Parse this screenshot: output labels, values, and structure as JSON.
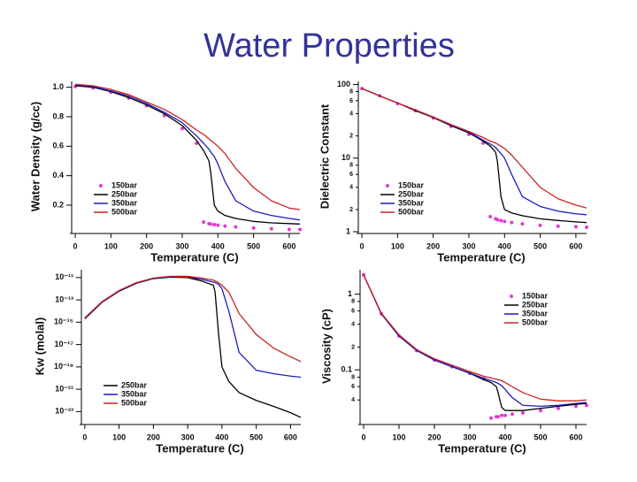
{
  "title": "Water Properties",
  "chart_data": [
    {
      "type": "line",
      "x_label": "Temperature (C)",
      "y_label": "Water Density (g/cc)",
      "log_y": false,
      "legend": "lower left",
      "x": [
        0,
        50,
        100,
        150,
        200,
        250,
        300,
        340,
        360,
        375,
        380,
        390,
        400,
        420,
        450,
        500,
        550,
        600,
        630
      ],
      "xlim": [
        -10,
        630
      ],
      "xticks": [
        0,
        100,
        200,
        300,
        400,
        500,
        600
      ],
      "ylim": [
        0.02,
        1.04
      ],
      "yticks": [
        0.2,
        0.4,
        0.6,
        0.8,
        {
          "value": 1,
          "label": "1.0"
        }
      ],
      "series": [
        {
          "name": "150bar",
          "color": "#e03ccf",
          "style": "dots",
          "values": [
            1.005,
            0.996,
            0.967,
            0.927,
            0.875,
            0.808,
            0.72,
            0.62,
            0.085,
            0.075,
            0.072,
            0.068,
            0.064,
            0.058,
            0.052,
            0.045,
            0.04,
            0.036,
            0.035
          ]
        },
        {
          "name": "250bar",
          "color": "#000000",
          "style": "line",
          "values": [
            1.01,
            1.0,
            0.97,
            0.93,
            0.88,
            0.82,
            0.74,
            0.64,
            0.57,
            0.5,
            0.42,
            0.2,
            0.16,
            0.13,
            0.11,
            0.09,
            0.08,
            0.075,
            0.072
          ]
        },
        {
          "name": "350bar",
          "color": "#1c1cc0",
          "style": "line",
          "values": [
            1.015,
            1.005,
            0.975,
            0.94,
            0.89,
            0.83,
            0.76,
            0.67,
            0.62,
            0.58,
            0.56,
            0.53,
            0.48,
            0.36,
            0.23,
            0.16,
            0.13,
            0.11,
            0.1
          ]
        },
        {
          "name": "500bar",
          "color": "#cc2222",
          "style": "line",
          "values": [
            1.02,
            1.01,
            0.985,
            0.95,
            0.9,
            0.85,
            0.78,
            0.71,
            0.68,
            0.65,
            0.64,
            0.62,
            0.6,
            0.55,
            0.45,
            0.32,
            0.23,
            0.18,
            0.17
          ]
        }
      ]
    },
    {
      "type": "line",
      "x_label": "Temperature (C)",
      "y_label": "Dielectric Constant",
      "log_y": true,
      "legend": "lower left",
      "x": [
        0,
        50,
        100,
        150,
        200,
        250,
        300,
        340,
        360,
        375,
        380,
        390,
        400,
        420,
        450,
        500,
        550,
        600,
        630
      ],
      "xlim": [
        -10,
        630
      ],
      "xticks": [
        0,
        100,
        200,
        300,
        400,
        500,
        600
      ],
      "ylim": [
        1,
        110
      ],
      "yticks": [
        1,
        2,
        4,
        6,
        8,
        10,
        {
          "value": 20,
          "label": "2"
        },
        {
          "value": 40,
          "label": "4"
        },
        {
          "value": 60,
          "label": "6"
        },
        {
          "value": 80,
          "label": "8"
        },
        100
      ],
      "series": [
        {
          "name": "150bar",
          "color": "#e03ccf",
          "style": "dots",
          "values": [
            88,
            70,
            55,
            44,
            35,
            27,
            21,
            16,
            1.6,
            1.5,
            1.45,
            1.42,
            1.38,
            1.33,
            1.28,
            1.22,
            1.19,
            1.17,
            1.15
          ]
        },
        {
          "name": "250bar",
          "color": "#000000",
          "style": "line",
          "values": [
            88,
            70,
            56,
            44,
            35.5,
            27.5,
            22,
            17,
            14.5,
            12,
            9,
            3,
            2.0,
            1.8,
            1.65,
            1.5,
            1.42,
            1.36,
            1.33
          ]
        },
        {
          "name": "350bar",
          "color": "#1c1cc0",
          "style": "line",
          "values": [
            88,
            70,
            56,
            45,
            36,
            28,
            22.5,
            17.5,
            15.5,
            14,
            13,
            11.5,
            10,
            6,
            3,
            2.2,
            1.9,
            1.75,
            1.7
          ]
        },
        {
          "name": "500bar",
          "color": "#cc2222",
          "style": "line",
          "values": [
            88,
            70,
            56,
            45,
            36,
            28.5,
            23,
            19,
            17,
            16,
            15.5,
            14.5,
            13.5,
            11,
            7.5,
            4,
            2.8,
            2.3,
            2.1
          ]
        }
      ]
    },
    {
      "type": "line",
      "x_label": "Temperature (C)",
      "y_label": "Kw (molal)",
      "log_y": true,
      "legend": "lower left",
      "x": [
        0,
        50,
        100,
        150,
        200,
        250,
        300,
        340,
        360,
        375,
        380,
        390,
        400,
        420,
        450,
        500,
        550,
        600,
        630
      ],
      "xlim": [
        -10,
        630
      ],
      "xticks": [
        0,
        100,
        200,
        300,
        400,
        500,
        600
      ],
      "ylim": [
        1e-24,
        5e-11
      ],
      "yticks": [
        {
          "value": 1e-23,
          "label": "10⁻²³"
        },
        {
          "value": 1e-21,
          "label": "10⁻²¹"
        },
        {
          "value": 1e-19,
          "label": "10⁻¹⁹"
        },
        {
          "value": 1e-17,
          "label": "10⁻¹⁷"
        },
        {
          "value": 1e-15,
          "label": "10⁻¹⁵"
        },
        {
          "value": 1e-13,
          "label": "10⁻¹³"
        },
        {
          "value": 1e-11,
          "label": "10⁻¹¹"
        }
      ],
      "series": [
        {
          "name": "250bar",
          "color": "#000000",
          "style": "line",
          "values": [
            2e-15,
            6e-14,
            6e-13,
            3e-12,
            8e-12,
            1.1e-11,
            1e-11,
            5e-12,
            3e-12,
            2e-12,
            5e-13,
            1e-16,
            1e-19,
            5e-21,
            5e-22,
            1e-22,
            3e-23,
            8e-24,
            3e-24
          ]
        },
        {
          "name": "350bar",
          "color": "#1c1cc0",
          "style": "line",
          "values": [
            2.2e-15,
            6.5e-14,
            6.5e-13,
            3.2e-12,
            8.5e-12,
            1.2e-11,
            1.1e-11,
            7e-12,
            5e-12,
            4e-12,
            3.5e-12,
            2.5e-12,
            1e-12,
            1e-14,
            2e-18,
            5e-20,
            2.5e-20,
            1.5e-20,
            1.2e-20
          ]
        },
        {
          "name": "500bar",
          "color": "#cc2222",
          "style": "line",
          "values": [
            2.5e-15,
            7e-14,
            7e-13,
            3.5e-12,
            9e-12,
            1.3e-11,
            1.3e-11,
            9e-12,
            7e-12,
            6e-12,
            5e-12,
            3.5e-12,
            2e-12,
            5e-13,
            6e-15,
            8e-17,
            5e-18,
            8e-19,
            3e-19
          ]
        }
      ]
    },
    {
      "type": "line",
      "x_label": "Temperature (C)",
      "y_label": "Viscosity (cP)",
      "log_y": true,
      "legend": "upper right",
      "x": [
        0,
        50,
        100,
        150,
        200,
        250,
        300,
        340,
        360,
        375,
        380,
        390,
        400,
        420,
        450,
        500,
        550,
        600,
        630
      ],
      "xlim": [
        -10,
        630
      ],
      "xticks": [
        0,
        100,
        200,
        300,
        400,
        500,
        600
      ],
      "ylim": [
        0.02,
        2.1
      ],
      "yticks": [
        {
          "value": 0.04,
          "label": "4"
        },
        {
          "value": 0.06,
          "label": "6"
        },
        {
          "value": 0.08,
          "label": "8"
        },
        0.1,
        {
          "value": 0.2,
          "label": "2"
        },
        {
          "value": 0.4,
          "label": "4"
        },
        {
          "value": 0.6,
          "label": "6"
        },
        {
          "value": 0.8,
          "label": "8"
        },
        1
      ],
      "series": [
        {
          "name": "150bar",
          "color": "#e03ccf",
          "style": "dots",
          "values": [
            1.8,
            0.55,
            0.28,
            0.18,
            0.135,
            0.11,
            0.09,
            0.076,
            0.023,
            0.024,
            0.024,
            0.025,
            0.025,
            0.026,
            0.027,
            0.029,
            0.031,
            0.033,
            0.034
          ]
        },
        {
          "name": "250bar",
          "color": "#000000",
          "style": "line",
          "values": [
            1.8,
            0.55,
            0.28,
            0.18,
            0.135,
            0.11,
            0.09,
            0.074,
            0.068,
            0.06,
            0.05,
            0.032,
            0.029,
            0.029,
            0.029,
            0.031,
            0.033,
            0.035,
            0.036
          ]
        },
        {
          "name": "350bar",
          "color": "#1c1cc0",
          "style": "line",
          "values": [
            1.8,
            0.55,
            0.28,
            0.18,
            0.135,
            0.11,
            0.091,
            0.077,
            0.072,
            0.068,
            0.066,
            0.062,
            0.055,
            0.043,
            0.034,
            0.033,
            0.034,
            0.036,
            0.037
          ]
        },
        {
          "name": "500bar",
          "color": "#cc2222",
          "style": "line",
          "values": [
            1.8,
            0.56,
            0.29,
            0.185,
            0.14,
            0.115,
            0.095,
            0.082,
            0.078,
            0.075,
            0.074,
            0.072,
            0.068,
            0.06,
            0.05,
            0.041,
            0.039,
            0.039,
            0.04
          ]
        }
      ]
    }
  ]
}
